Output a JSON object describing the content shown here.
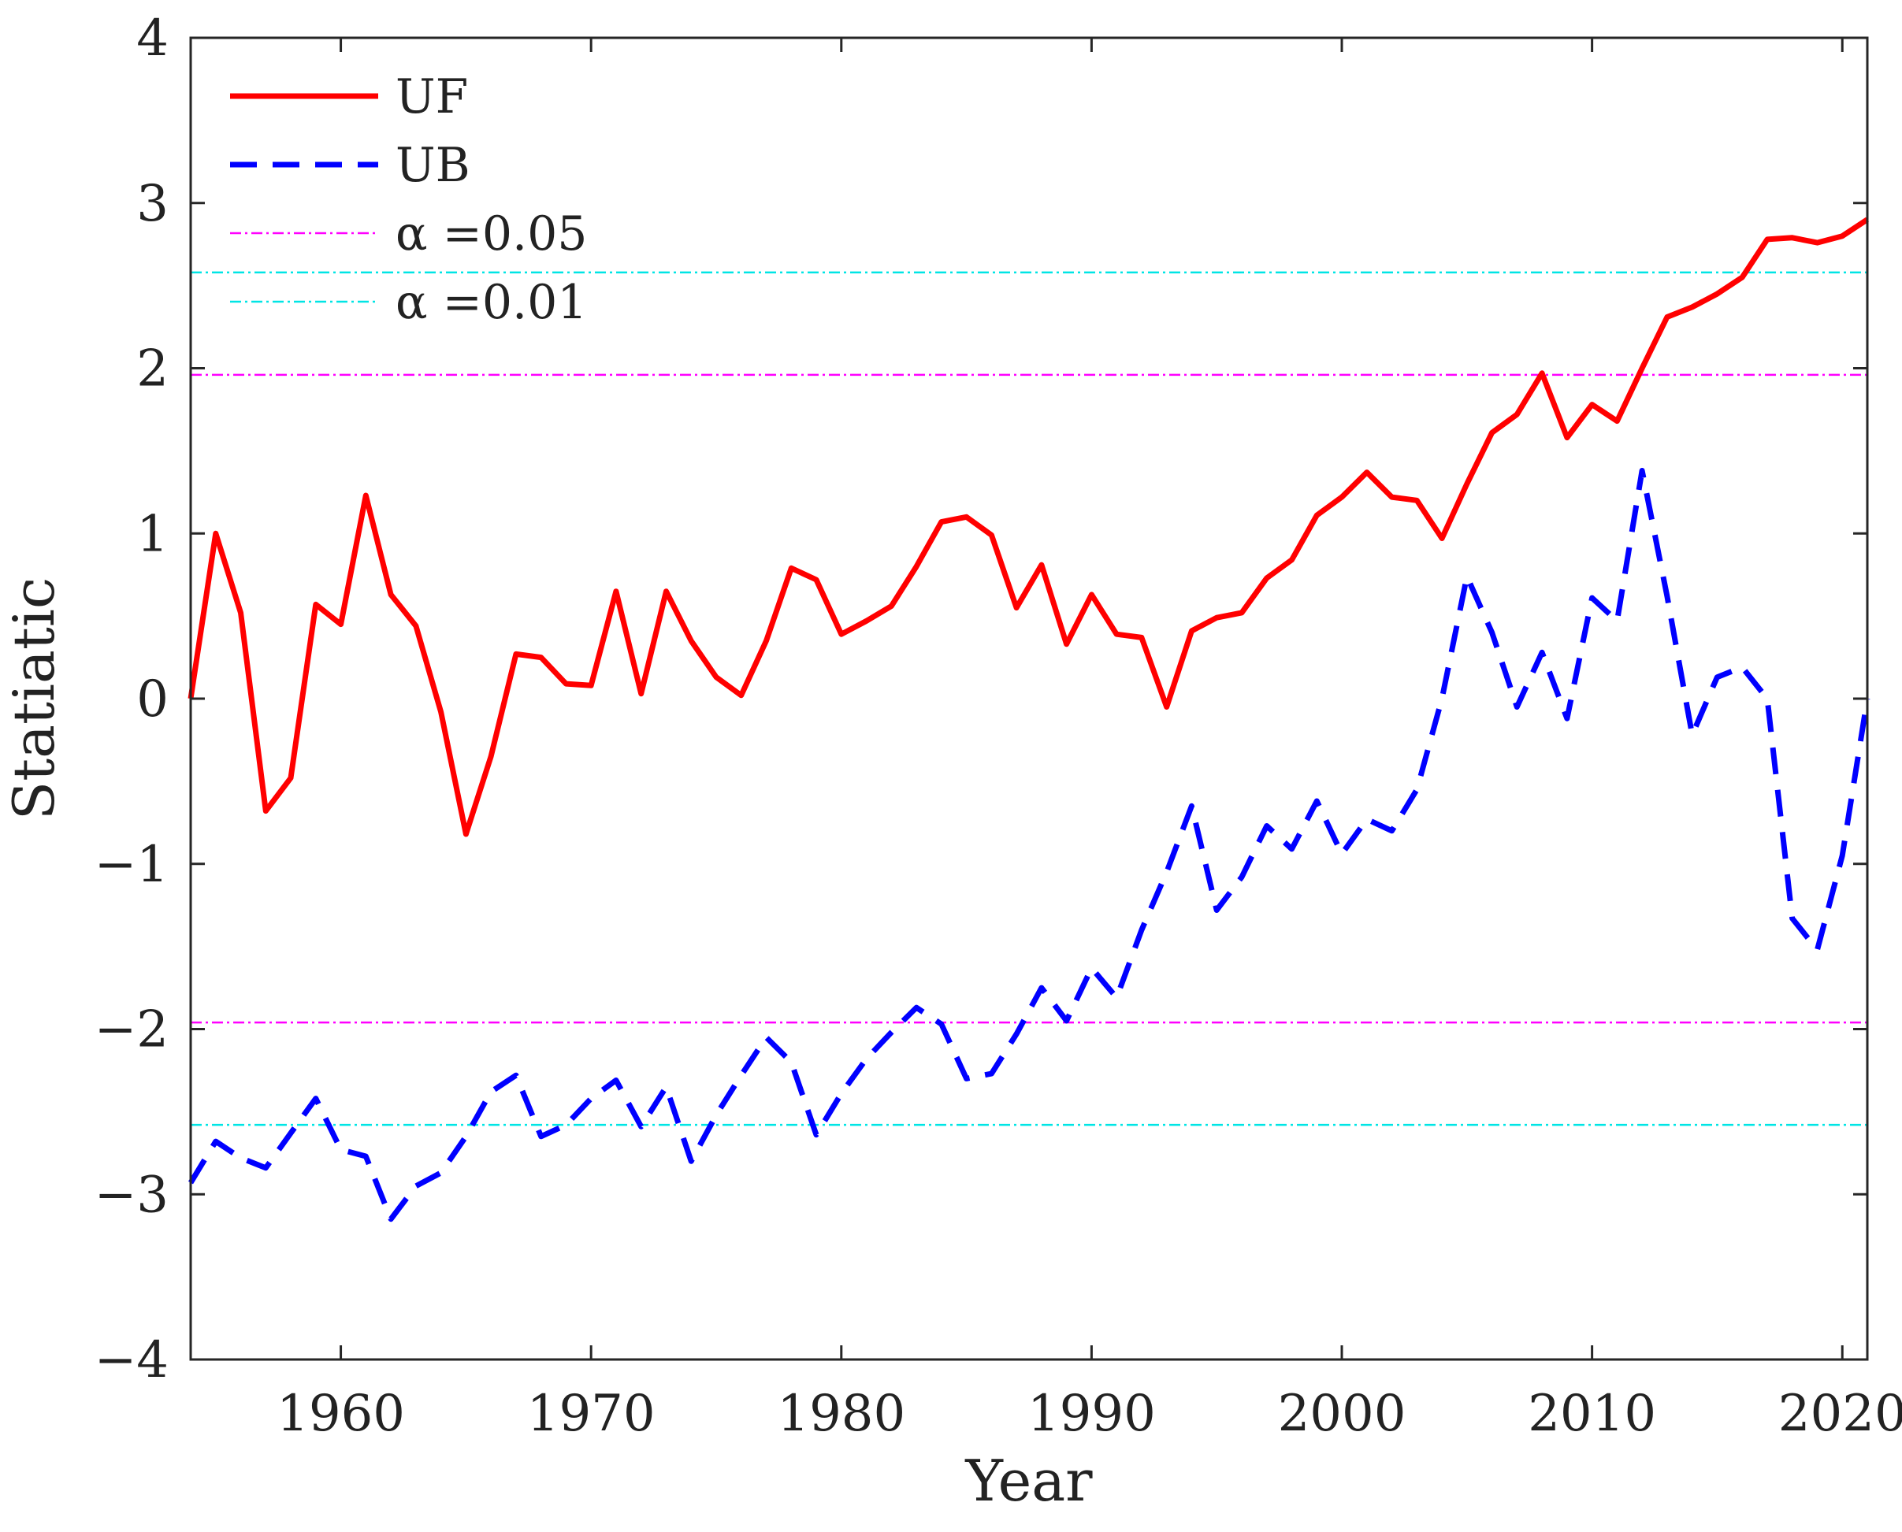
{
  "chart_data": {
    "type": "line",
    "title": "",
    "xlabel": "Year",
    "ylabel": "Statiatic",
    "xlim": [
      1954,
      2021
    ],
    "ylim": [
      -4,
      4
    ],
    "xticks": [
      1960,
      1970,
      1980,
      1990,
      2000,
      2010,
      2020
    ],
    "yticks": [
      -4,
      -3,
      -2,
      -1,
      0,
      1,
      2,
      3,
      4
    ],
    "ytick_labels": [
      "−4",
      "−3",
      "−2",
      "−1",
      "0",
      "1",
      "2",
      "3",
      "4"
    ],
    "grid": false,
    "legend_position": "top-left",
    "x": [
      1954,
      1955,
      1956,
      1957,
      1958,
      1959,
      1960,
      1961,
      1962,
      1963,
      1964,
      1965,
      1966,
      1967,
      1968,
      1969,
      1970,
      1971,
      1972,
      1973,
      1974,
      1975,
      1976,
      1977,
      1978,
      1979,
      1980,
      1981,
      1982,
      1983,
      1984,
      1985,
      1986,
      1987,
      1988,
      1989,
      1990,
      1991,
      1992,
      1993,
      1994,
      1995,
      1996,
      1997,
      1998,
      1999,
      2000,
      2001,
      2002,
      2003,
      2004,
      2005,
      2006,
      2007,
      2008,
      2009,
      2010,
      2011,
      2012,
      2013,
      2014,
      2015,
      2016,
      2017,
      2018,
      2019,
      2020,
      2021
    ],
    "series": [
      {
        "name": "UF",
        "color": "#ff0000",
        "style": "solid",
        "values": [
          0.0,
          1.0,
          0.52,
          -0.68,
          -0.48,
          0.57,
          0.45,
          1.23,
          0.63,
          0.44,
          -0.08,
          -0.82,
          -0.35,
          0.27,
          0.25,
          0.09,
          0.08,
          0.65,
          0.03,
          0.65,
          0.35,
          0.13,
          0.02,
          0.35,
          0.79,
          0.72,
          0.39,
          0.47,
          0.56,
          0.8,
          1.07,
          1.1,
          0.99,
          0.55,
          0.81,
          0.33,
          0.63,
          0.39,
          0.37,
          -0.05,
          0.41,
          0.49,
          0.52,
          0.73,
          0.84,
          1.11,
          1.22,
          1.37,
          1.22,
          1.2,
          0.97,
          1.3,
          1.61,
          1.72,
          1.97,
          1.58,
          1.78,
          1.68,
          2.0,
          2.31,
          2.37,
          2.45,
          2.55,
          2.78,
          2.79,
          2.76,
          2.8,
          2.9
        ]
      },
      {
        "name": "UB",
        "color": "#0000ff",
        "style": "dashed",
        "values": [
          -2.93,
          -2.68,
          -2.78,
          -2.84,
          -2.63,
          -2.42,
          -2.73,
          -2.77,
          -3.15,
          -2.95,
          -2.87,
          -2.65,
          -2.38,
          -2.28,
          -2.65,
          -2.58,
          -2.42,
          -2.31,
          -2.59,
          -2.35,
          -2.8,
          -2.52,
          -2.28,
          -2.05,
          -2.2,
          -2.64,
          -2.39,
          -2.18,
          -2.02,
          -1.87,
          -1.97,
          -2.3,
          -2.27,
          -2.03,
          -1.75,
          -1.95,
          -1.63,
          -1.81,
          -1.4,
          -1.05,
          -0.65,
          -1.28,
          -1.08,
          -0.77,
          -0.91,
          -0.62,
          -0.94,
          -0.73,
          -0.8,
          -0.55,
          0.0,
          0.74,
          0.4,
          -0.05,
          0.28,
          -0.12,
          0.61,
          0.47,
          1.38,
          0.62,
          -0.22,
          0.13,
          0.19,
          0.0,
          -1.33,
          -1.52,
          -0.95,
          0.0
        ]
      }
    ],
    "reference_lines": [
      {
        "name": "α =0.05",
        "color": "#ff00ff",
        "values": [
          1.96,
          -1.96
        ]
      },
      {
        "name": "α =0.01",
        "color": "#00e5e5",
        "values": [
          2.58,
          -2.58
        ]
      }
    ]
  }
}
